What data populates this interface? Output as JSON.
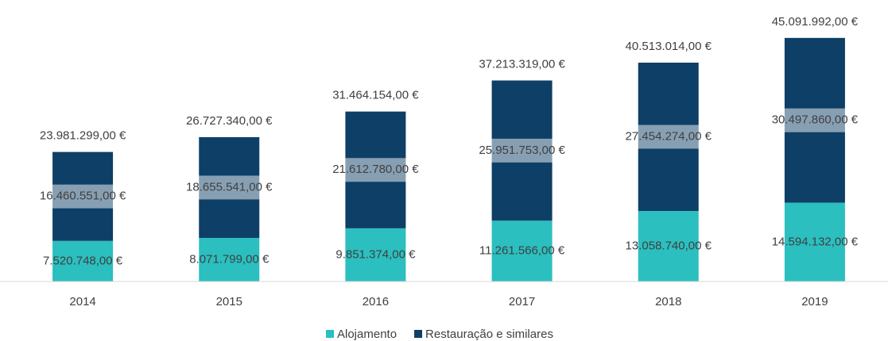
{
  "chart_data": {
    "type": "stacked_bar",
    "categories": [
      "2014",
      "2015",
      "2016",
      "2017",
      "2018",
      "2019"
    ],
    "series": [
      {
        "name": "Alojamento",
        "color": "#2bbfbf",
        "values": [
          7520748,
          8071799,
          9851374,
          11261566,
          13058740,
          14594132
        ],
        "value_labels": [
          "7.520.748,00 €",
          "8.071.799,00 €",
          "9.851.374,00 €",
          "11.261.566,00 €",
          "13.058.740,00 €",
          "14.594.132,00 €"
        ]
      },
      {
        "name": "Restauração e similares",
        "color": "#0e3f66",
        "values": [
          16460551,
          18655541,
          21612780,
          25951753,
          27454274,
          30497860
        ],
        "value_labels": [
          "16.460.551,00 €",
          "18.655.541,00 €",
          "21.612.780,00 €",
          "25.951.753,00 €",
          "27.454.274,00 €",
          "30.497.860,00 €"
        ]
      }
    ],
    "totals": [
      23981299,
      26727340,
      31464154,
      37213319,
      40513014,
      45091992
    ],
    "total_labels": [
      "23.981.299,00 €",
      "26.727.340,00 €",
      "31.464.154,00 €",
      "37.213.319,00 €",
      "40.513.014,00 €",
      "45.091.992,00 €"
    ],
    "ylim": [
      0,
      48000000
    ],
    "legend": "bottom"
  }
}
